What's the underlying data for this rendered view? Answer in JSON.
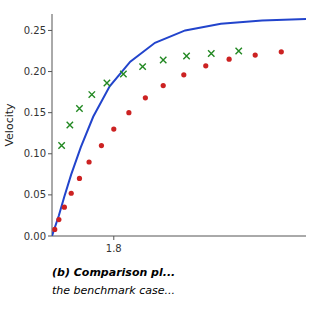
{
  "chart_data": {
    "type": "line",
    "y_label": "Velocity",
    "xlim": [
      1.755,
      1.94
    ],
    "ylim": [
      0.0,
      0.27
    ],
    "xticks": [
      1.8
    ],
    "yticks": [
      {
        "value": 0.0,
        "label": "0.00"
      },
      0.05,
      {
        "value": 0.1,
        "label": "0.10"
      },
      0.15,
      {
        "value": 0.2,
        "label": "0.20"
      },
      0.25
    ],
    "grid": false,
    "series": [
      {
        "type": "line",
        "color": "#2244cc",
        "x": [
          1.755,
          1.757,
          1.76,
          1.764,
          1.769,
          1.776,
          1.785,
          1.797,
          1.812,
          1.83,
          1.852,
          1.878,
          1.908,
          1.94
        ],
        "values": [
          0.0,
          0.01,
          0.025,
          0.048,
          0.075,
          0.108,
          0.145,
          0.182,
          0.212,
          0.235,
          0.25,
          0.258,
          0.262,
          0.264
        ]
      },
      {
        "type": "scatter",
        "color": "#cc2222",
        "marker": "circle",
        "x": [
          1.757,
          1.76,
          1.764,
          1.769,
          1.775,
          1.782,
          1.791,
          1.8,
          1.811,
          1.823,
          1.836,
          1.851,
          1.867,
          1.884,
          1.903,
          1.922
        ],
        "values": [
          0.008,
          0.02,
          0.035,
          0.052,
          0.07,
          0.09,
          0.11,
          0.13,
          0.15,
          0.168,
          0.183,
          0.196,
          0.207,
          0.215,
          0.22,
          0.224
        ]
      },
      {
        "type": "scatter",
        "color": "#228822",
        "marker": "x",
        "x": [
          1.762,
          1.768,
          1.775,
          1.784,
          1.795,
          1.807,
          1.821,
          1.836,
          1.853,
          1.871,
          1.891
        ],
        "values": [
          0.11,
          0.135,
          0.155,
          0.172,
          0.186,
          0.197,
          0.206,
          0.214,
          0.219,
          0.222,
          0.225
        ]
      }
    ],
    "annotations": [
      "(b) Comparison pl...",
      "the benchmark case..."
    ]
  }
}
